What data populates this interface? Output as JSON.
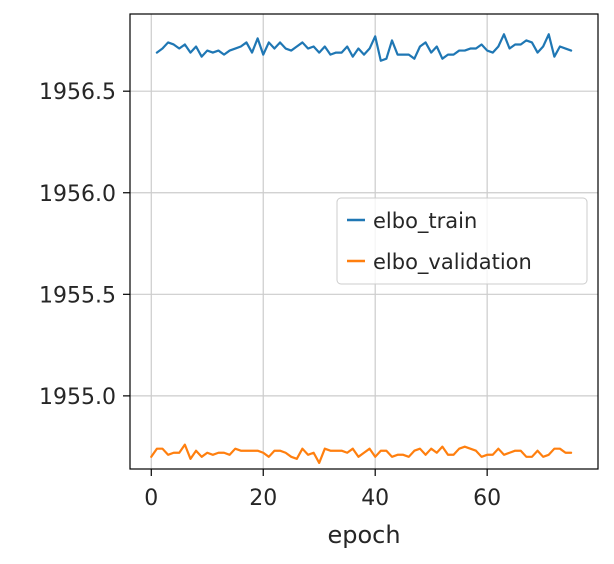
{
  "chart_data": {
    "type": "line",
    "title": "",
    "xlabel": "epoch",
    "ylabel": "",
    "xlim": [
      -3.8,
      79.8
    ],
    "ylim": [
      1954.64,
      1956.88
    ],
    "xticks": [
      0,
      20,
      40,
      60
    ],
    "xtick_labels": [
      "0",
      "20",
      "40",
      "60"
    ],
    "yticks": [
      1955.0,
      1955.5,
      1956.0,
      1956.5
    ],
    "ytick_labels": [
      "1955.0",
      "1955.5",
      "1956.0",
      "1956.5"
    ],
    "grid": true,
    "legend": {
      "position": "center-right"
    },
    "series": [
      {
        "name": "elbo_train",
        "color": "#1f77b4",
        "x": [
          1,
          2,
          3,
          4,
          5,
          6,
          7,
          8,
          9,
          10,
          11,
          12,
          13,
          14,
          15,
          16,
          17,
          18,
          19,
          20,
          21,
          22,
          23,
          24,
          25,
          26,
          27,
          28,
          29,
          30,
          31,
          32,
          33,
          34,
          35,
          36,
          37,
          38,
          39,
          40,
          41,
          42,
          43,
          44,
          45,
          46,
          47,
          48,
          49,
          50,
          51,
          52,
          53,
          54,
          55,
          56,
          57,
          58,
          59,
          60,
          61,
          62,
          63,
          64,
          65,
          66,
          67,
          68,
          69,
          70,
          71,
          72,
          73,
          74,
          75
        ],
        "y": [
          1956.69,
          1956.71,
          1956.74,
          1956.73,
          1956.71,
          1956.73,
          1956.69,
          1956.72,
          1956.67,
          1956.7,
          1956.69,
          1956.7,
          1956.68,
          1956.7,
          1956.71,
          1956.72,
          1956.74,
          1956.69,
          1956.76,
          1956.68,
          1956.74,
          1956.71,
          1956.74,
          1956.71,
          1956.7,
          1956.72,
          1956.74,
          1956.71,
          1956.72,
          1956.69,
          1956.72,
          1956.68,
          1956.69,
          1956.69,
          1956.72,
          1956.67,
          1956.71,
          1956.68,
          1956.71,
          1956.77,
          1956.65,
          1956.66,
          1956.75,
          1956.68,
          1956.68,
          1956.68,
          1956.66,
          1956.72,
          1956.74,
          1956.69,
          1956.72,
          1956.66,
          1956.68,
          1956.68,
          1956.7,
          1956.7,
          1956.71,
          1956.71,
          1956.73,
          1956.7,
          1956.69,
          1956.72,
          1956.78,
          1956.71,
          1956.73,
          1956.73,
          1956.75,
          1956.74,
          1956.69,
          1956.72,
          1956.78,
          1956.67,
          1956.72,
          1956.71,
          1956.7
        ]
      },
      {
        "name": "elbo_validation",
        "color": "#ff7f0e",
        "x": [
          0,
          1,
          2,
          3,
          4,
          5,
          6,
          7,
          8,
          9,
          10,
          11,
          12,
          13,
          14,
          15,
          16,
          17,
          18,
          19,
          20,
          21,
          22,
          23,
          24,
          25,
          26,
          27,
          28,
          29,
          30,
          31,
          32,
          33,
          34,
          35,
          36,
          37,
          38,
          39,
          40,
          41,
          42,
          43,
          44,
          45,
          46,
          47,
          48,
          49,
          50,
          51,
          52,
          53,
          54,
          55,
          56,
          57,
          58,
          59,
          60,
          61,
          62,
          63,
          64,
          65,
          66,
          67,
          68,
          69,
          70,
          71,
          72,
          73,
          74,
          75
        ],
        "y": [
          1954.7,
          1954.74,
          1954.74,
          1954.71,
          1954.72,
          1954.72,
          1954.76,
          1954.69,
          1954.73,
          1954.7,
          1954.72,
          1954.71,
          1954.72,
          1954.72,
          1954.71,
          1954.74,
          1954.73,
          1954.73,
          1954.73,
          1954.73,
          1954.72,
          1954.7,
          1954.73,
          1954.73,
          1954.72,
          1954.7,
          1954.69,
          1954.74,
          1954.71,
          1954.72,
          1954.67,
          1954.74,
          1954.73,
          1954.73,
          1954.73,
          1954.72,
          1954.74,
          1954.7,
          1954.72,
          1954.74,
          1954.7,
          1954.73,
          1954.73,
          1954.7,
          1954.71,
          1954.71,
          1954.7,
          1954.73,
          1954.74,
          1954.71,
          1954.74,
          1954.72,
          1954.75,
          1954.71,
          1954.71,
          1954.74,
          1954.75,
          1954.74,
          1954.73,
          1954.7,
          1954.71,
          1954.71,
          1954.74,
          1954.71,
          1954.72,
          1954.73,
          1954.73,
          1954.7,
          1954.7,
          1954.73,
          1954.7,
          1954.71,
          1954.74,
          1954.74,
          1954.72,
          1954.72
        ]
      }
    ]
  }
}
